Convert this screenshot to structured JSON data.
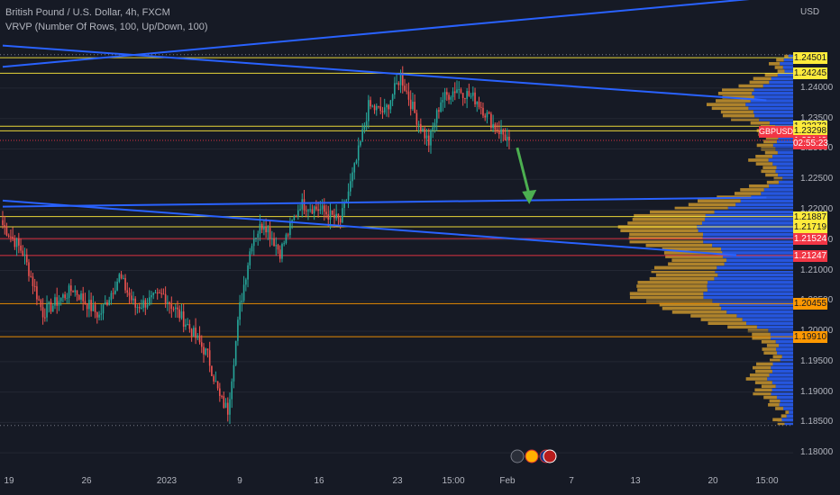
{
  "legend": {
    "symbol": "British Pound / U.S. Dollar, 4h, FXCM",
    "indicator": "VRVP (Number Of Rows, 100, Up/Down, 100)"
  },
  "currency_label": "USD",
  "symbol_badge": "GBPUSD",
  "countdown": "02:55:23",
  "colors": {
    "background": "#161a25",
    "up": "#26a69a",
    "down": "#ef5350",
    "trendline": "#2962ff",
    "yellow": "#ffeb3b",
    "orange": "#ff9800",
    "red": "#f23645",
    "vp_up": "#2962ff",
    "vp_down": "#c9962e",
    "arrow": "#4caf50"
  },
  "chart_data": {
    "type": "candlestick",
    "y_ticks": [
      "1.24000",
      "1.23500",
      "1.23000",
      "1.22500",
      "1.22000",
      "1.21500",
      "1.21000",
      "1.20500",
      "1.20000",
      "1.19500",
      "1.19000",
      "1.18500",
      "1.18000"
    ],
    "ylim": [
      1.1775,
      1.2545
    ],
    "x_ticks": [
      "19",
      "26",
      "2023",
      "9",
      "16",
      "23",
      "15:00",
      "Feb",
      "7",
      "13",
      "20",
      "15:00"
    ],
    "price_labels": [
      {
        "value": "1.24501",
        "kind": "yellow"
      },
      {
        "value": "1.24245",
        "kind": "yellow"
      },
      {
        "value": "1.23373",
        "kind": "yellow"
      },
      {
        "value": "1.23298",
        "kind": "yellow"
      },
      {
        "value": "1.23140",
        "kind": "last"
      },
      {
        "value": "1.21887",
        "kind": "yellow"
      },
      {
        "value": "1.21719",
        "kind": "yellow"
      },
      {
        "value": "1.21524",
        "kind": "red"
      },
      {
        "value": "1.21247",
        "kind": "red"
      },
      {
        "value": "1.20455",
        "kind": "orange"
      },
      {
        "value": "1.19910",
        "kind": "orange"
      }
    ],
    "anchors": [
      {
        "i": 0,
        "p": 1.2175
      },
      {
        "i": 10,
        "p": 1.213
      },
      {
        "i": 20,
        "p": 1.203
      },
      {
        "i": 35,
        "p": 1.207
      },
      {
        "i": 48,
        "p": 1.2025
      },
      {
        "i": 58,
        "p": 1.209
      },
      {
        "i": 66,
        "p": 1.204
      },
      {
        "i": 80,
        "p": 1.206
      },
      {
        "i": 92,
        "p": 1.201
      },
      {
        "i": 102,
        "p": 1.196
      },
      {
        "i": 108,
        "p": 1.189
      },
      {
        "i": 112,
        "p": 1.187
      },
      {
        "i": 118,
        "p": 1.204
      },
      {
        "i": 124,
        "p": 1.215
      },
      {
        "i": 130,
        "p": 1.218
      },
      {
        "i": 138,
        "p": 1.213
      },
      {
        "i": 148,
        "p": 1.221
      },
      {
        "i": 158,
        "p": 1.22
      },
      {
        "i": 168,
        "p": 1.218
      },
      {
        "i": 176,
        "p": 1.228
      },
      {
        "i": 182,
        "p": 1.237
      },
      {
        "i": 190,
        "p": 1.236
      },
      {
        "i": 198,
        "p": 1.242
      },
      {
        "i": 206,
        "p": 1.235
      },
      {
        "i": 212,
        "p": 1.231
      },
      {
        "i": 218,
        "p": 1.238
      },
      {
        "i": 226,
        "p": 1.24
      },
      {
        "i": 236,
        "p": 1.238
      },
      {
        "i": 244,
        "p": 1.234
      },
      {
        "i": 252,
        "p": 1.2314
      }
    ],
    "trendlines": [
      {
        "i1": 0,
        "p1": 1.2435,
        "i2": 400,
        "p2": 1.2555,
        "color": "blue"
      },
      {
        "i1": 0,
        "p1": 1.247,
        "i2": 380,
        "p2": 1.238,
        "color": "blue"
      },
      {
        "i1": 0,
        "p1": 1.2205,
        "i2": 380,
        "p2": 1.222,
        "color": "blue"
      },
      {
        "i1": 0,
        "p1": 1.2215,
        "i2": 365,
        "p2": 1.2125,
        "color": "blue"
      }
    ],
    "forecast_arrow": {
      "from": {
        "i": 256,
        "p": 1.2302
      },
      "to": {
        "i": 262,
        "p": 1.2215
      }
    }
  }
}
